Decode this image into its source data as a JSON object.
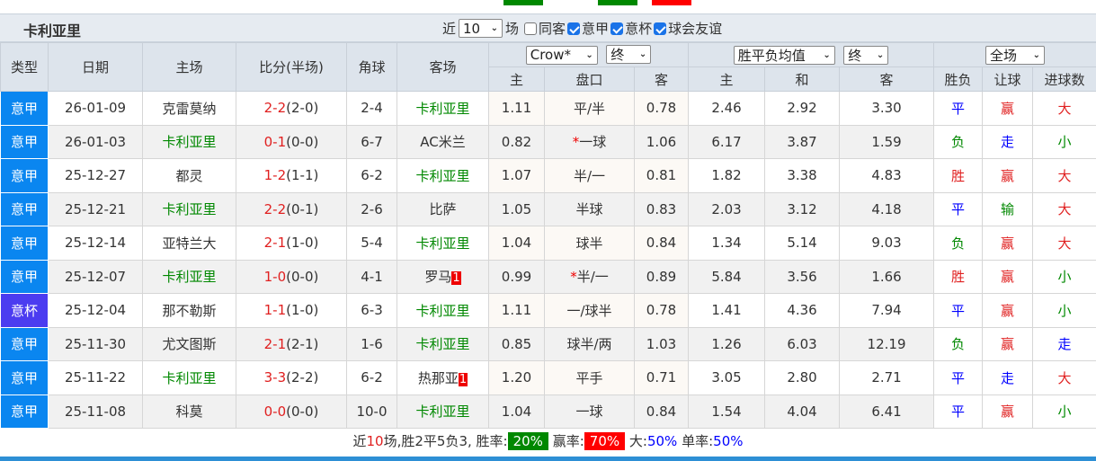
{
  "header": {
    "team": "卡利亚里",
    "near_label": "近",
    "count": "10",
    "count_unit": "场",
    "checks": [
      {
        "label": "同客",
        "checked": false
      },
      {
        "label": "意甲",
        "checked": true
      },
      {
        "label": "意杯",
        "checked": true
      },
      {
        "label": "球会友谊",
        "checked": true
      }
    ]
  },
  "columns": {
    "type": "类型",
    "date": "日期",
    "home": "主场",
    "score": "比分(半场)",
    "corner": "角球",
    "away": "客场",
    "company": "Crow*",
    "odds_time": "终",
    "avg": "胜平负均值",
    "avg_time": "终",
    "scope": "全场",
    "home_odds": "主",
    "handicap": "盘口",
    "away_odds": "客",
    "win": "主",
    "draw": "和",
    "lose": "客",
    "result": "胜负",
    "ah": "让球",
    "goals": "进球数"
  },
  "colors": {
    "league_serie_a": "#0a86f0",
    "league_cup": "#4b3cf0",
    "home_team": "#008000",
    "win_badge": "#008000",
    "lose_badge": "#ff0000"
  },
  "rows": [
    {
      "type": "意甲",
      "date": "26-01-09",
      "home": "克雷莫纳",
      "score": "2-2",
      "ht": "(2-0)",
      "corner": "2-4",
      "away": "卡利亚里",
      "ho": "1.11",
      "hc": "平/半",
      "ao": "0.78",
      "w": "2.46",
      "d": "2.92",
      "l": "3.30",
      "r": "平",
      "ah": "赢",
      "g": "大"
    },
    {
      "type": "意甲",
      "date": "26-01-03",
      "home": "卡利亚里",
      "score": "0-1",
      "ht": "(0-0)",
      "corner": "6-7",
      "away": "AC米兰",
      "ho": "0.82",
      "hc": "一球",
      "star": "*",
      "ao": "1.06",
      "w": "6.17",
      "d": "3.87",
      "l": "1.59",
      "r": "负",
      "ah": "走",
      "g": "小"
    },
    {
      "type": "意甲",
      "date": "25-12-27",
      "home": "都灵",
      "score": "1-2",
      "ht": "(1-1)",
      "corner": "6-2",
      "away": "卡利亚里",
      "ho": "1.07",
      "hc": "半/一",
      "ao": "0.81",
      "w": "1.82",
      "d": "3.38",
      "l": "4.83",
      "r": "胜",
      "ah": "赢",
      "g": "大"
    },
    {
      "type": "意甲",
      "date": "25-12-21",
      "home": "卡利亚里",
      "score": "2-2",
      "ht": "(0-1)",
      "corner": "2-6",
      "away": "比萨",
      "ho": "1.05",
      "hc": "半球",
      "ao": "0.83",
      "w": "2.03",
      "d": "3.12",
      "l": "4.18",
      "r": "平",
      "ah": "输",
      "g": "大"
    },
    {
      "type": "意甲",
      "date": "25-12-14",
      "home": "亚特兰大",
      "score": "2-1",
      "ht": "(1-0)",
      "corner": "5-4",
      "away": "卡利亚里",
      "ho": "1.04",
      "hc": "球半",
      "ao": "0.84",
      "w": "1.34",
      "d": "5.14",
      "l": "9.03",
      "r": "负",
      "ah": "赢",
      "g": "大"
    },
    {
      "type": "意甲",
      "date": "25-12-07",
      "home": "卡利亚里",
      "score": "1-0",
      "ht": "(0-0)",
      "corner": "4-1",
      "away": "罗马",
      "card": "1",
      "ho": "0.99",
      "hc": "半/一",
      "star": "*",
      "ao": "0.89",
      "w": "5.84",
      "d": "3.56",
      "l": "1.66",
      "r": "胜",
      "ah": "赢",
      "g": "小"
    },
    {
      "type": "意杯",
      "date": "25-12-04",
      "home": "那不勒斯",
      "score": "1-1",
      "ht": "(1-0)",
      "corner": "6-3",
      "away": "卡利亚里",
      "ho": "1.11",
      "hc": "一/球半",
      "ao": "0.78",
      "w": "1.41",
      "d": "4.36",
      "l": "7.94",
      "r": "平",
      "ah": "赢",
      "g": "小"
    },
    {
      "type": "意甲",
      "date": "25-11-30",
      "home": "尤文图斯",
      "score": "2-1",
      "ht": "(2-1)",
      "corner": "1-6",
      "away": "卡利亚里",
      "ho": "0.85",
      "hc": "球半/两",
      "ao": "1.03",
      "w": "1.26",
      "d": "6.03",
      "l": "12.19",
      "r": "负",
      "ah": "赢",
      "g": "走"
    },
    {
      "type": "意甲",
      "date": "25-11-22",
      "home": "卡利亚里",
      "score": "3-3",
      "ht": "(2-2)",
      "corner": "6-2",
      "away": "热那亚",
      "card": "1",
      "ho": "1.20",
      "hc": "平手",
      "ao": "0.71",
      "w": "3.05",
      "d": "2.80",
      "l": "2.71",
      "r": "平",
      "ah": "走",
      "g": "大"
    },
    {
      "type": "意甲",
      "date": "25-11-08",
      "home": "科莫",
      "score": "0-0",
      "ht": "(0-0)",
      "corner": "10-0",
      "away": "卡利亚里",
      "ho": "1.04",
      "hc": "一球",
      "ao": "0.84",
      "w": "1.54",
      "d": "4.04",
      "l": "6.41",
      "r": "平",
      "ah": "赢",
      "g": "小"
    }
  ],
  "summary": {
    "p1": "近",
    "n": "10",
    "p2": "场,胜2平5负3, 胜率:",
    "win_rate": "20%",
    "p3": "赢率:",
    "ah_rate": "70%",
    "p4": "大:",
    "big_rate": "50%",
    "p5": "单率:",
    "odd_rate": "50%"
  }
}
